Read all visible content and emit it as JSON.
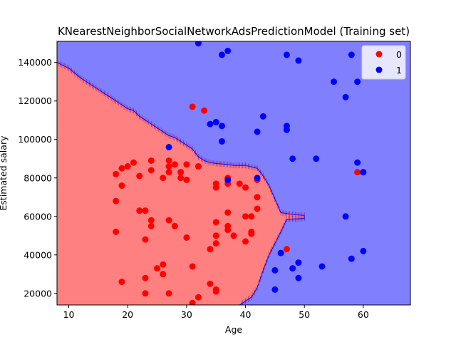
{
  "chart_data": {
    "type": "scatter",
    "title": "KNearestNeighborSocialNetworkAdsPredictionModel (Training set)",
    "xlabel": "Age",
    "ylabel": "Estimated salary",
    "xlim": [
      8,
      68
    ],
    "ylim": [
      14000,
      151000
    ],
    "xticks": [
      10,
      20,
      30,
      40,
      50,
      60
    ],
    "yticks": [
      20000,
      40000,
      60000,
      80000,
      100000,
      120000,
      140000
    ],
    "grid": false,
    "legend": {
      "position": "top-right",
      "entries": [
        "0",
        "1"
      ]
    },
    "colors": {
      "region_0": "#ff8080",
      "region_1": "#8080ff",
      "point_0": "#ff0000",
      "point_1": "#0000ff"
    },
    "boundary": [
      [
        8,
        140000
      ],
      [
        10,
        137000
      ],
      [
        12,
        132000
      ],
      [
        14,
        128000
      ],
      [
        16,
        124000
      ],
      [
        17,
        122000
      ],
      [
        18,
        120000
      ],
      [
        19,
        118000
      ],
      [
        20,
        116000
      ],
      [
        21,
        115000
      ],
      [
        22,
        112000
      ],
      [
        23,
        110000
      ],
      [
        24,
        108000
      ],
      [
        25,
        106000
      ],
      [
        26,
        104000
      ],
      [
        27,
        102000
      ],
      [
        28,
        101000
      ],
      [
        29,
        99000
      ],
      [
        30,
        97000
      ],
      [
        31,
        95000
      ],
      [
        32,
        91000
      ],
      [
        33,
        89000
      ],
      [
        34,
        88000
      ],
      [
        35,
        87500
      ],
      [
        37,
        87000
      ],
      [
        38,
        86500
      ],
      [
        40,
        86500
      ],
      [
        42,
        85000
      ],
      [
        43,
        81000
      ],
      [
        44,
        76000
      ],
      [
        45,
        69000
      ],
      [
        46,
        62000
      ],
      [
        48,
        61000
      ],
      [
        50,
        60500
      ],
      [
        50,
        59000
      ],
      [
        47,
        58500
      ],
      [
        46,
        52000
      ],
      [
        45,
        46000
      ],
      [
        44,
        40000
      ],
      [
        43,
        32000
      ],
      [
        42,
        23000
      ],
      [
        41,
        18000
      ],
      [
        40,
        16000
      ],
      [
        39,
        14000
      ]
    ],
    "series": [
      {
        "name": "0",
        "points": [
          [
            18,
            82000
          ],
          [
            19,
            85000
          ],
          [
            20,
            86000
          ],
          [
            21,
            88000
          ],
          [
            22,
            81000
          ],
          [
            24,
            84000
          ],
          [
            24,
            89000
          ],
          [
            26,
            80000
          ],
          [
            27,
            86000
          ],
          [
            27,
            89000
          ],
          [
            28,
            87000
          ],
          [
            29,
            83000
          ],
          [
            30,
            87000
          ],
          [
            29,
            80000
          ],
          [
            30,
            79000
          ],
          [
            27,
            83000
          ],
          [
            32,
            86000
          ],
          [
            31,
            117000
          ],
          [
            33,
            115000
          ],
          [
            35,
            77000
          ],
          [
            35,
            75000
          ],
          [
            37,
            80000
          ],
          [
            37,
            77000
          ],
          [
            39,
            77000
          ],
          [
            40,
            75000
          ],
          [
            42,
            79000
          ],
          [
            42,
            70000
          ],
          [
            42,
            64000
          ],
          [
            40,
            60000
          ],
          [
            41,
            60000
          ],
          [
            37,
            62000
          ],
          [
            35,
            57000
          ],
          [
            37,
            55000
          ],
          [
            37,
            53000
          ],
          [
            41,
            52000
          ],
          [
            41,
            51000
          ],
          [
            35,
            50000
          ],
          [
            38,
            50000
          ],
          [
            40,
            47000
          ],
          [
            35,
            46000
          ],
          [
            34,
            43000
          ],
          [
            47,
            43000
          ],
          [
            59,
            83000
          ],
          [
            18,
            68000
          ],
          [
            19,
            76000
          ],
          [
            22,
            63000
          ],
          [
            23,
            63000
          ],
          [
            24,
            58000
          ],
          [
            24,
            55000
          ],
          [
            27,
            58000
          ],
          [
            28,
            55000
          ],
          [
            30,
            49000
          ],
          [
            18,
            52000
          ],
          [
            23,
            48000
          ],
          [
            26,
            35000
          ],
          [
            25,
            33000
          ],
          [
            26,
            30000
          ],
          [
            23,
            28000
          ],
          [
            19,
            26000
          ],
          [
            31,
            34000
          ],
          [
            34,
            25000
          ],
          [
            35,
            22000
          ],
          [
            35,
            21000
          ],
          [
            23,
            20000
          ],
          [
            27,
            20000
          ],
          [
            32,
            18000
          ],
          [
            31,
            15000
          ]
        ]
      },
      {
        "name": "1",
        "points": [
          [
            32,
            150000
          ],
          [
            36,
            144000
          ],
          [
            37,
            146000
          ],
          [
            47,
            144000
          ],
          [
            49,
            141000
          ],
          [
            58,
            144000
          ],
          [
            55,
            130000
          ],
          [
            59,
            130000
          ],
          [
            57,
            122000
          ],
          [
            43,
            112000
          ],
          [
            47,
            107000
          ],
          [
            47,
            105000
          ],
          [
            42,
            104000
          ],
          [
            36,
            99000
          ],
          [
            27,
            96000
          ],
          [
            48,
            90000
          ],
          [
            52,
            90000
          ],
          [
            59,
            88000
          ],
          [
            60,
            83000
          ],
          [
            42,
            80000
          ],
          [
            37,
            79000
          ],
          [
            57,
            60000
          ],
          [
            60,
            42000
          ],
          [
            46,
            41000
          ],
          [
            58,
            38000
          ],
          [
            49,
            36000
          ],
          [
            53,
            34000
          ],
          [
            48,
            33000
          ],
          [
            45,
            32000
          ],
          [
            49,
            28000
          ],
          [
            45,
            22000
          ],
          [
            34,
            108000
          ],
          [
            35,
            109000
          ],
          [
            36,
            107000
          ]
        ]
      }
    ]
  }
}
